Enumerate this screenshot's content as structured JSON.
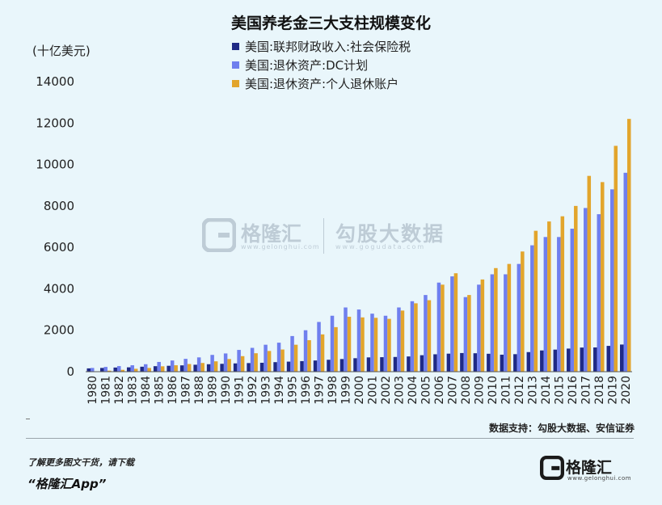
{
  "header": {
    "title": "美国养老金三大支柱规模变化",
    "unit": "(十亿美元)"
  },
  "source": "数据支持：勾股大数据、安信证券",
  "footer": {
    "line1": "了解更多图文干货，请下载",
    "line2": "“格隆汇App”"
  },
  "logo": {
    "name": "格隆汇",
    "domain": "www.gelonghui.com"
  },
  "watermark": {
    "left_name": "格隆汇",
    "left_domain": "www.gelonghui.com",
    "right_name": "勾股大数据",
    "right_domain": "www.gogudata.com"
  },
  "chart_data": {
    "type": "bar",
    "title": "美国养老金三大支柱规模变化",
    "ylabel": "(十亿美元)",
    "ylim": [
      0,
      14000
    ],
    "yticks": [
      0,
      2000,
      4000,
      6000,
      8000,
      10000,
      12000,
      14000
    ],
    "grid": false,
    "legend_position": "top",
    "categories": [
      "1980",
      "1981",
      "1982",
      "1983",
      "1984",
      "1985",
      "1986",
      "1987",
      "1988",
      "1989",
      "1990",
      "1991",
      "1992",
      "1993",
      "1994",
      "1995",
      "1996",
      "1997",
      "1998",
      "1999",
      "2000",
      "2001",
      "2002",
      "2003",
      "2004",
      "2005",
      "2006",
      "2007",
      "2008",
      "2009",
      "2010",
      "2011",
      "2012",
      "2013",
      "2014",
      "2015",
      "2016",
      "2017",
      "2018",
      "2019",
      "2020"
    ],
    "series": [
      {
        "name": "美国:联邦财政收入:社会保险税",
        "color": "#1f2a86",
        "values": [
          160,
          180,
          200,
          210,
          240,
          265,
          285,
          305,
          335,
          360,
          380,
          400,
          415,
          430,
          460,
          485,
          510,
          540,
          575,
          610,
          650,
          690,
          700,
          710,
          735,
          795,
          840,
          870,
          900,
          890,
          865,
          820,
          845,
          945,
          1025,
          1065,
          1115,
          1165,
          1170,
          1245,
          1310
        ]
      },
      {
        "name": "美国:退休资产:DC计划",
        "color": "#6f7fee",
        "values": [
          180,
          230,
          270,
          310,
          360,
          470,
          540,
          620,
          690,
          810,
          880,
          1050,
          1150,
          1300,
          1400,
          1720,
          2000,
          2400,
          2700,
          3100,
          3000,
          2800,
          2700,
          3100,
          3400,
          3700,
          4300,
          4600,
          3600,
          4200,
          4700,
          4700,
          5200,
          6100,
          6500,
          6500,
          6900,
          7900,
          7600,
          8800,
          9600
        ]
      },
      {
        "name": "美国:退休资产:个人退休账户",
        "color": "#e2a52c",
        "values": [
          0,
          50,
          90,
          140,
          180,
          260,
          310,
          370,
          420,
          500,
          610,
          750,
          890,
          1000,
          1070,
          1300,
          1520,
          1800,
          2150,
          2650,
          2620,
          2600,
          2550,
          2950,
          3300,
          3450,
          4200,
          4750,
          3700,
          4450,
          5000,
          5200,
          5800,
          6800,
          7250,
          7500,
          8000,
          9450,
          9150,
          10900,
          12200
        ]
      }
    ]
  }
}
